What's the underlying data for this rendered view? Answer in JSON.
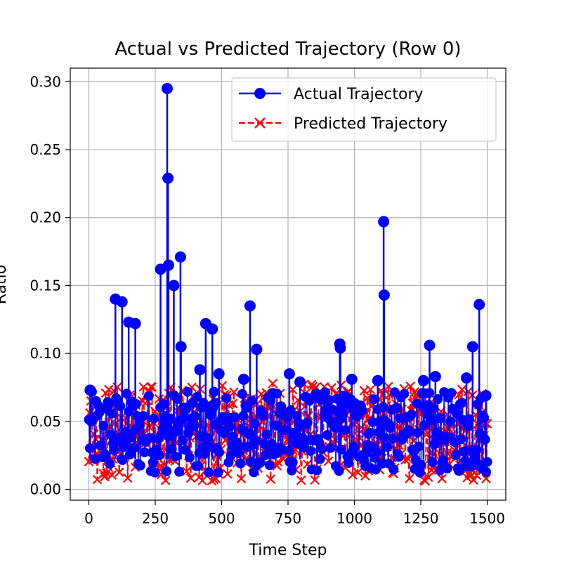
{
  "chart_data": {
    "type": "line",
    "title": "Actual vs Predicted Trajectory (Row 0)",
    "xlabel": "Time Step",
    "ylabel": "Ratio",
    "xlim": [
      -70,
      1570
    ],
    "ylim": [
      -0.008,
      0.31
    ],
    "x_ticks": [
      0,
      250,
      500,
      750,
      1000,
      1250,
      1500
    ],
    "x_tick_labels": [
      "0",
      "250",
      "500",
      "750",
      "1000",
      "1250",
      "1500"
    ],
    "y_ticks": [
      0.0,
      0.05,
      0.1,
      0.15,
      0.2,
      0.25,
      0.3
    ],
    "y_tick_labels": [
      "0.00",
      "0.05",
      "0.10",
      "0.15",
      "0.20",
      "0.25",
      "0.30"
    ],
    "grid": true,
    "legend_position": "top-right",
    "x_range": [
      0,
      1500
    ],
    "series": [
      {
        "name": "Actual Trajectory",
        "color": "#0000ff",
        "marker": "circle",
        "line_style": "solid",
        "baseline_low": 0.012,
        "baseline_high": 0.072,
        "spikes": [
          {
            "x": 5,
            "y": 0.073
          },
          {
            "x": 100,
            "y": 0.14
          },
          {
            "x": 125,
            "y": 0.138
          },
          {
            "x": 150,
            "y": 0.123
          },
          {
            "x": 175,
            "y": 0.122
          },
          {
            "x": 270,
            "y": 0.162
          },
          {
            "x": 295,
            "y": 0.295
          },
          {
            "x": 298,
            "y": 0.229
          },
          {
            "x": 300,
            "y": 0.165
          },
          {
            "x": 320,
            "y": 0.15
          },
          {
            "x": 345,
            "y": 0.171
          },
          {
            "x": 347,
            "y": 0.105
          },
          {
            "x": 418,
            "y": 0.088
          },
          {
            "x": 440,
            "y": 0.122
          },
          {
            "x": 465,
            "y": 0.118
          },
          {
            "x": 490,
            "y": 0.085
          },
          {
            "x": 583,
            "y": 0.081
          },
          {
            "x": 607,
            "y": 0.135
          },
          {
            "x": 632,
            "y": 0.103
          },
          {
            "x": 755,
            "y": 0.085
          },
          {
            "x": 795,
            "y": 0.079
          },
          {
            "x": 945,
            "y": 0.107
          },
          {
            "x": 947,
            "y": 0.104
          },
          {
            "x": 990,
            "y": 0.081
          },
          {
            "x": 1088,
            "y": 0.08
          },
          {
            "x": 1110,
            "y": 0.197
          },
          {
            "x": 1112,
            "y": 0.143
          },
          {
            "x": 1260,
            "y": 0.08
          },
          {
            "x": 1283,
            "y": 0.106
          },
          {
            "x": 1305,
            "y": 0.083
          },
          {
            "x": 1422,
            "y": 0.082
          },
          {
            "x": 1445,
            "y": 0.105
          },
          {
            "x": 1470,
            "y": 0.136
          },
          {
            "x": 1495,
            "y": 0.069
          }
        ]
      },
      {
        "name": "Predicted Trajectory",
        "color": "#ff0000",
        "marker": "x",
        "line_style": "dashed",
        "baseline_low": 0.006,
        "baseline_high": 0.078
      }
    ]
  }
}
